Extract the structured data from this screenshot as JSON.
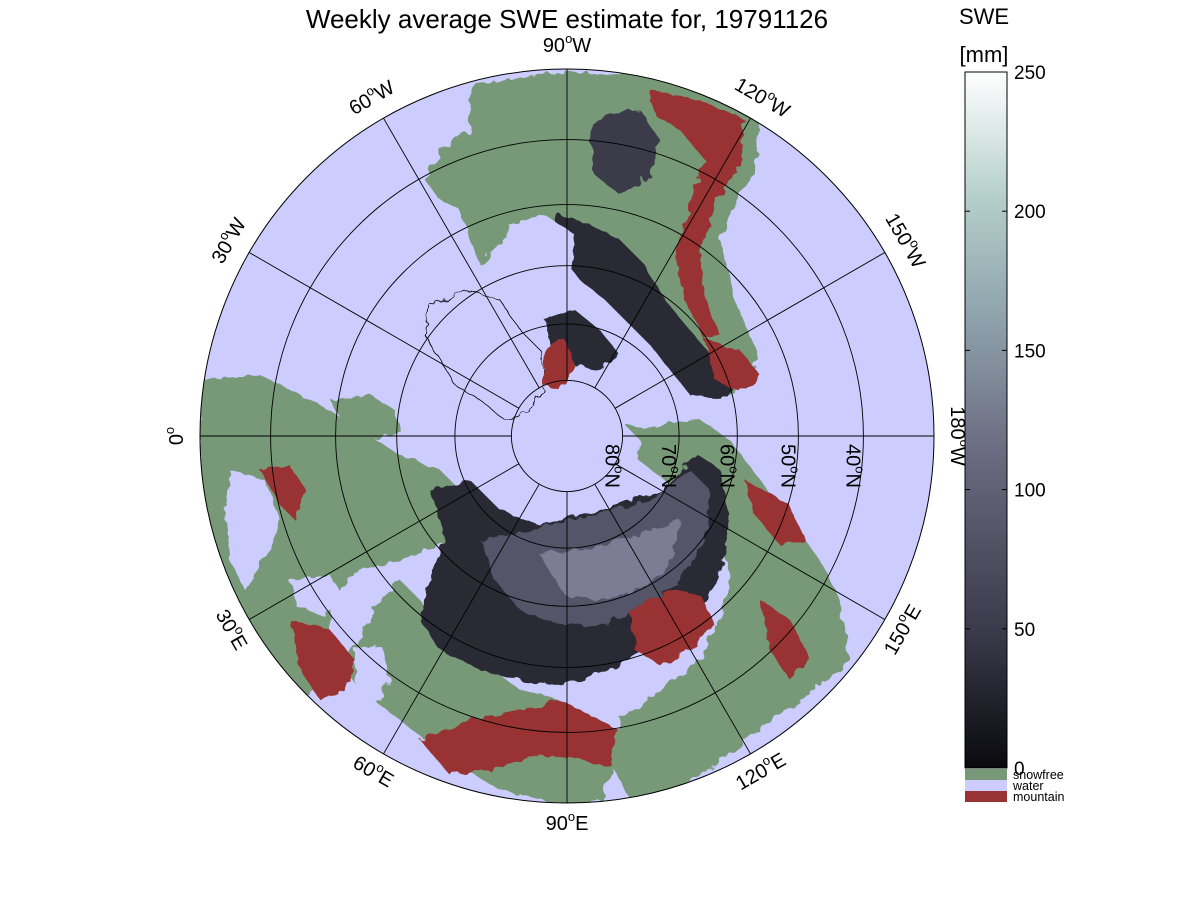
{
  "title": "Weekly average SWE estimate for, 19791126",
  "map": {
    "projection": "north polar stereographic",
    "colors": {
      "water": "#ccccff",
      "snowfree": "#779977",
      "mountain": "#993333",
      "snow_low": "#1e1e26",
      "snow_mid": "#55556a",
      "snow_high": "#8e8ea4"
    },
    "longitude_labels": [
      {
        "lon": 0,
        "text": "0°",
        "display_base": "0",
        "display_sup": "o",
        "display_suffix": ""
      },
      {
        "lon": -30,
        "text": "30°W",
        "display_base": "30",
        "display_sup": "o",
        "display_suffix": "W"
      },
      {
        "lon": -60,
        "text": "60°W",
        "display_base": "60",
        "display_sup": "o",
        "display_suffix": "W"
      },
      {
        "lon": -90,
        "text": "90°W",
        "display_base": "90",
        "display_sup": "o",
        "display_suffix": "W"
      },
      {
        "lon": -120,
        "text": "120°W",
        "display_base": "120",
        "display_sup": "o",
        "display_suffix": "W"
      },
      {
        "lon": -150,
        "text": "150°W",
        "display_base": "150",
        "display_sup": "o",
        "display_suffix": "W"
      },
      {
        "lon": 180,
        "text": "180°W",
        "display_base": "180",
        "display_sup": "o",
        "display_suffix": "W"
      },
      {
        "lon": 150,
        "text": "150°E",
        "display_base": "150",
        "display_sup": "o",
        "display_suffix": "E"
      },
      {
        "lon": 120,
        "text": "120°E",
        "display_base": "120",
        "display_sup": "o",
        "display_suffix": "E"
      },
      {
        "lon": 90,
        "text": "90°E",
        "display_base": "90",
        "display_sup": "o",
        "display_suffix": "E"
      },
      {
        "lon": 60,
        "text": "60°E",
        "display_base": "60",
        "display_sup": "o",
        "display_suffix": "E"
      },
      {
        "lon": 30,
        "text": "30°E",
        "display_base": "30",
        "display_sup": "o",
        "display_suffix": "E"
      }
    ],
    "latitude_labels": [
      {
        "lat": 80,
        "text": "80°N",
        "display_base": "80",
        "display_sup": "o",
        "display_suffix": "N"
      },
      {
        "lat": 70,
        "text": "70°N",
        "display_base": "70",
        "display_sup": "o",
        "display_suffix": "N"
      },
      {
        "lat": 60,
        "text": "60°N",
        "display_base": "60",
        "display_sup": "o",
        "display_suffix": "N"
      },
      {
        "lat": 50,
        "text": "50°N",
        "display_base": "50",
        "display_sup": "o",
        "display_suffix": "N"
      },
      {
        "lat": 40,
        "text": "40°N",
        "display_base": "40",
        "display_sup": "o",
        "display_suffix": "N"
      }
    ],
    "meridian_step_deg": 30,
    "parallels_deg": [
      80,
      70,
      60,
      50,
      40
    ]
  },
  "colorbar": {
    "title_line1": "SWE",
    "title_line2": "[mm]",
    "range": [
      0,
      250
    ],
    "ticks": [
      "0",
      "50",
      "100",
      "150",
      "200",
      "250"
    ],
    "gradient": [
      "#0a0a0e",
      "#3b3b4c",
      "#6a6a80",
      "#8fa3ad",
      "#b4cfca",
      "#ffffff"
    ],
    "categories": [
      {
        "label": "snowfree",
        "color": "#779977"
      },
      {
        "label": "water",
        "color": "#ccccff"
      },
      {
        "label": "mountain",
        "color": "#993333"
      }
    ]
  }
}
